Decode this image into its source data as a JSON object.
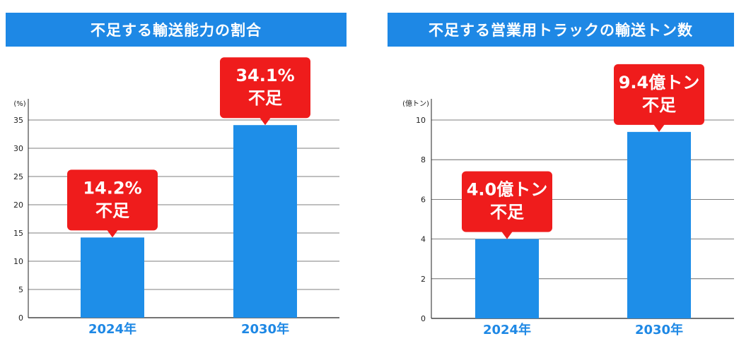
{
  "colors": {
    "accent": "#1e88e5",
    "bar": "#1e8ee8",
    "callout": "#ef1c1c",
    "grid": "#555555"
  },
  "chart_data": [
    {
      "type": "bar",
      "title": "不足する輸送能力の割合",
      "unit_label": "(%)",
      "categories": [
        "2024年",
        "2030年"
      ],
      "values": [
        14.2,
        34.1
      ],
      "ylim": [
        0,
        35
      ],
      "yticks": [
        0,
        5,
        10,
        15,
        20,
        25,
        30,
        35
      ],
      "grid": true,
      "annotations": [
        [
          "14.2%",
          "不足"
        ],
        [
          "34.1%",
          "不足"
        ]
      ]
    },
    {
      "type": "bar",
      "title": "不足する営業用トラックの輸送トン数",
      "unit_label": "(億トン)",
      "categories": [
        "2024年",
        "2030年"
      ],
      "values": [
        4.0,
        9.4
      ],
      "ylim": [
        0,
        10
      ],
      "yticks": [
        0,
        2,
        4,
        6,
        8,
        10
      ],
      "grid": true,
      "annotations": [
        [
          "4.0億トン",
          "不足"
        ],
        [
          "9.4億トン",
          "不足"
        ]
      ]
    }
  ]
}
